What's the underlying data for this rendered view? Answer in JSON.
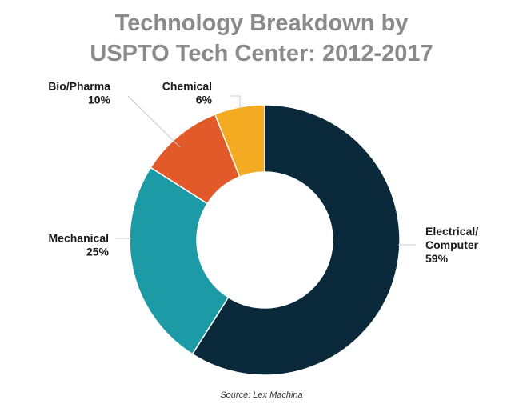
{
  "chart_data": {
    "type": "pie",
    "donut": true,
    "title_lines": [
      "Technology Breakdown by",
      "USPTO Tech Center: 2012-2017"
    ],
    "source": "Source: Lex Machina",
    "slices": [
      {
        "name": "Electrical/ Computer",
        "label_lines": [
          "Electrical/",
          "Computer"
        ],
        "value": 59,
        "value_text": "59%",
        "color": "#0a2a3b"
      },
      {
        "name": "Mechanical",
        "label_lines": [
          "Mechanical"
        ],
        "value": 25,
        "value_text": "25%",
        "color": "#1c9aa5"
      },
      {
        "name": "Bio/Pharma",
        "label_lines": [
          "Bio/Pharma"
        ],
        "value": 10,
        "value_text": "10%",
        "color": "#e2592a"
      },
      {
        "name": "Chemical",
        "label_lines": [
          "Chemical"
        ],
        "value": 6,
        "value_text": "6%",
        "color": "#f4ab22"
      }
    ],
    "start_angle_deg": 0,
    "direction": "clockwise",
    "leader_line_color": "#c8c8c8"
  }
}
